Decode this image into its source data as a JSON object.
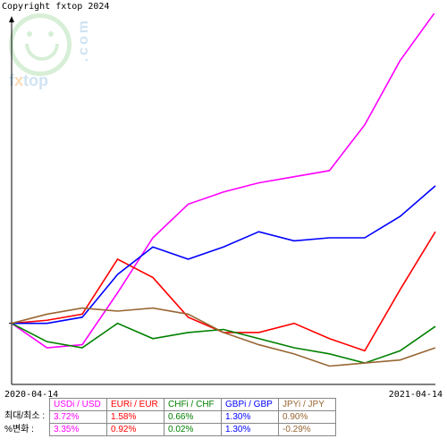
{
  "copyright": "Copyright fxtop 2024",
  "logo": {
    "brand": "fxtop",
    "domain": ".com"
  },
  "chart": {
    "type": "line",
    "background_color": "#ffffff",
    "axis_color": "#000000",
    "x_start_label": "2020-04-14",
    "x_end_label": "2021-04-14",
    "xlim": [
      0,
      12
    ],
    "ylim": [
      -2,
      10
    ],
    "baseline_y": 0,
    "series": [
      {
        "name": "USDi / USD",
        "color": "#ff00ff",
        "values": [
          0,
          -0.8,
          -0.7,
          1.0,
          2.8,
          3.9,
          4.3,
          4.6,
          4.8,
          5.0,
          6.5,
          8.6,
          10.2
        ]
      },
      {
        "name": "EURi / EUR",
        "color": "#ff0000",
        "values": [
          0,
          0.1,
          0.3,
          2.1,
          1.5,
          0.2,
          -0.3,
          -0.3,
          0.0,
          -0.5,
          -0.9,
          1.1,
          3.0
        ]
      },
      {
        "name": "CHFi / CHF",
        "color": "#008000",
        "values": [
          0,
          -0.6,
          -0.8,
          0.0,
          -0.5,
          -0.3,
          -0.2,
          -0.5,
          -0.8,
          -1.0,
          -1.3,
          -0.9,
          -0.1
        ]
      },
      {
        "name": "GBPi / GBP",
        "color": "#0000ff",
        "values": [
          0,
          0.0,
          0.2,
          1.6,
          2.5,
          2.1,
          2.5,
          3.0,
          2.7,
          2.8,
          2.8,
          3.5,
          4.5
        ]
      },
      {
        "name": "JPYi / JPY",
        "color": "#996633",
        "values": [
          0,
          0.3,
          0.5,
          0.4,
          0.5,
          0.3,
          -0.3,
          -0.7,
          -1.0,
          -1.4,
          -1.3,
          -1.2,
          -0.8
        ]
      }
    ]
  },
  "table": {
    "row_labels": [
      "최대/최소 :",
      "%변화 :"
    ],
    "columns": [
      {
        "header": "USDi / USD",
        "color": "#ff00ff",
        "maxmin": "3.72%",
        "change": "3.35%"
      },
      {
        "header": "EURi / EUR",
        "color": "#ff0000",
        "maxmin": "1.58%",
        "change": "0.92%"
      },
      {
        "header": "CHFi / CHF",
        "color": "#008000",
        "maxmin": "0.66%",
        "change": "0.02%"
      },
      {
        "header": "GBPi / GBP",
        "color": "#0000ff",
        "maxmin": "1.30%",
        "change": "1.30%"
      },
      {
        "header": "JPYi / JPY",
        "color": "#996633",
        "maxmin": "0.90%",
        "change": "-0.29%"
      }
    ]
  }
}
